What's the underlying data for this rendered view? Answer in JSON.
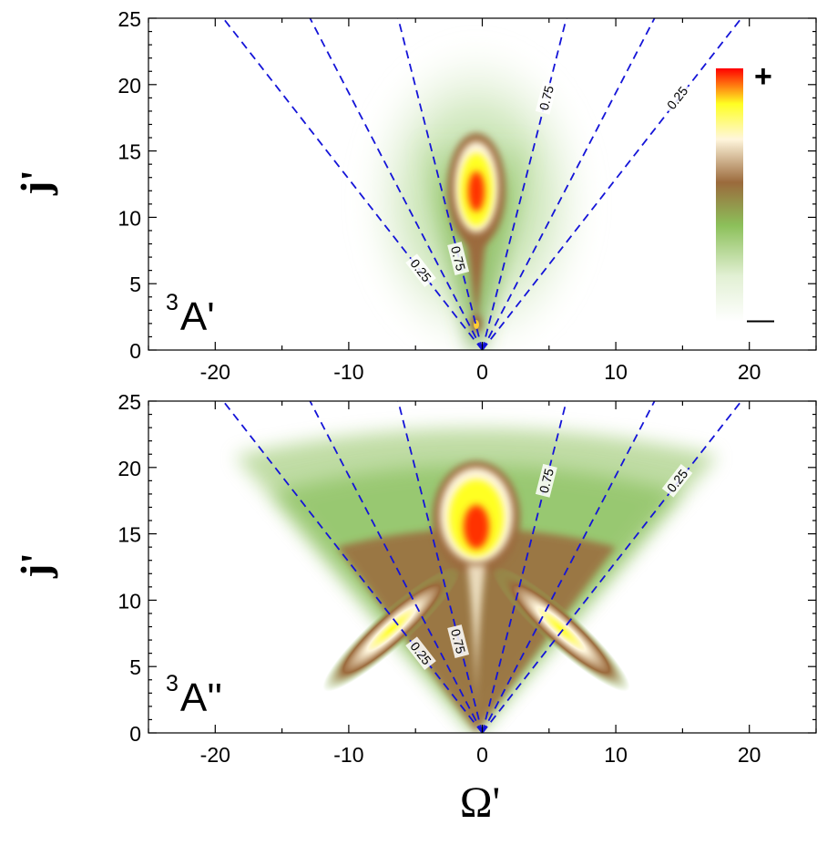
{
  "chart_data": [
    {
      "type": "heatmap",
      "panel": "top",
      "state_label": {
        "base": "A'",
        "superscript": "3"
      },
      "ylabel": "j'",
      "xlabel": "",
      "xlim": [
        -25,
        25
      ],
      "ylim": [
        0,
        25
      ],
      "x_ticks": [
        -20,
        -10,
        0,
        10,
        20
      ],
      "y_ticks": [
        0,
        5,
        10,
        15,
        20,
        25
      ],
      "x_tick_labels": [
        "-20",
        "-10",
        "0",
        "10",
        "20"
      ],
      "y_tick_labels": [
        "0",
        "5",
        "10",
        "15",
        "20",
        "25"
      ],
      "colorbar": {
        "max_label": "+",
        "min_label": "—",
        "colors": [
          "#ffffff",
          "#e2f0d4",
          "#8cc05a",
          "#9b6a3c",
          "#fff6dc",
          "#ffff22",
          "#ff0000"
        ]
      },
      "features": [
        {
          "kind": "peak",
          "omega": 0,
          "j": 11.5,
          "intensity": 1.0
        }
      ],
      "dashed_lines": [
        {
          "label": "0.25",
          "omega_at_top": -19.4,
          "labeled": true,
          "label_pos": {
            "omega": -4.6,
            "j": 6.0
          }
        },
        {
          "label": "",
          "omega_at_top": -12.9,
          "labeled": false
        },
        {
          "label": "0.75",
          "omega_at_top": -6.3,
          "labeled": true,
          "label_pos": {
            "omega": -1.8,
            "j": 6.9
          }
        },
        {
          "label": "0.75",
          "omega_at_top": 6.3,
          "labeled": true,
          "label_pos": {
            "omega": 4.8,
            "j": 19.0
          }
        },
        {
          "label": "",
          "omega_at_top": 12.9,
          "labeled": false
        },
        {
          "label": "0.25",
          "omega_at_top": 19.4,
          "labeled": true,
          "label_pos": {
            "omega": 14.6,
            "j": 19.0
          }
        }
      ]
    },
    {
      "type": "heatmap",
      "panel": "bottom",
      "state_label": {
        "base": "A''",
        "superscript": "3"
      },
      "ylabel": "j'",
      "xlabel": "Ω'",
      "xlim": [
        -25,
        25
      ],
      "ylim": [
        0,
        25
      ],
      "x_ticks": [
        -20,
        -10,
        0,
        10,
        20
      ],
      "y_ticks": [
        0,
        5,
        10,
        15,
        20,
        25
      ],
      "x_tick_labels": [
        "-20",
        "-10",
        "0",
        "10",
        "20"
      ],
      "y_tick_labels": [
        "0",
        "5",
        "10",
        "15",
        "20",
        "25"
      ],
      "features": [
        {
          "kind": "peak",
          "omega": 0,
          "j": 15.5,
          "intensity": 1.0
        },
        {
          "kind": "ridge",
          "omega": -6,
          "j": 7,
          "intensity": 0.8
        },
        {
          "kind": "ridge",
          "omega": 6,
          "j": 7,
          "intensity": 0.8
        }
      ],
      "dashed_lines": [
        {
          "label": "0.25",
          "omega_at_top": -19.4,
          "labeled": true,
          "label_pos": {
            "omega": -4.6,
            "j": 6.0
          }
        },
        {
          "label": "",
          "omega_at_top": -12.9,
          "labeled": false
        },
        {
          "label": "0.75",
          "omega_at_top": -6.3,
          "labeled": true,
          "label_pos": {
            "omega": -1.8,
            "j": 6.9
          }
        },
        {
          "label": "0.75",
          "omega_at_top": 6.3,
          "labeled": true,
          "label_pos": {
            "omega": 4.8,
            "j": 19.0
          }
        },
        {
          "label": "",
          "omega_at_top": 12.9,
          "labeled": false
        },
        {
          "label": "0.25",
          "omega_at_top": 19.4,
          "labeled": true,
          "label_pos": {
            "omega": 14.6,
            "j": 19.0
          }
        }
      ]
    }
  ]
}
